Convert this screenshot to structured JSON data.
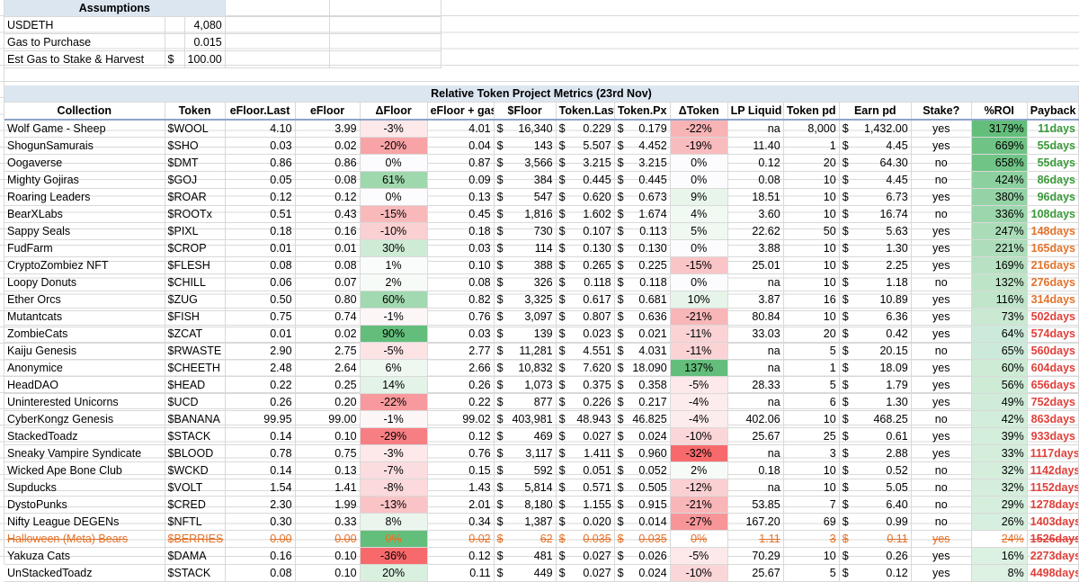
{
  "assumptions": {
    "title": "Assumptions",
    "rows": [
      {
        "label": "USDETH",
        "cur": "",
        "value": "4,080"
      },
      {
        "label": "Gas to Purchase",
        "cur": "",
        "value": "0.015"
      },
      {
        "label": "Est Gas to Stake & Harvest",
        "cur": "$",
        "value": "100.00"
      }
    ]
  },
  "table": {
    "title": "Relative Token Project Metrics (23rd Nov)",
    "headers": [
      "Collection",
      "Token",
      "eFloor.Last",
      "eFloor",
      "ΔFloor",
      "eFloor + gas",
      "$Floor",
      "Token.Last",
      "Token.Px",
      "ΔToken",
      "LP Liquid",
      "Token pd",
      "Earn pd",
      "Stake?",
      "%ROI",
      "Payback"
    ],
    "rows": [
      {
        "collection": "Wolf Game - Sheep",
        "token": "$WOOL",
        "efloor_last": "4.10",
        "efloor": "3.99",
        "dfloor": "-3%",
        "efloor_gas": "4.01",
        "usd_floor": "16,340",
        "token_last": "0.229",
        "token_px": "0.179",
        "dtoken": "-22%",
        "lp": "na",
        "token_pd": "8,000",
        "earn_pd": "1,432.00",
        "stake": "yes",
        "roi": "3179%",
        "payback": "11days",
        "dfloor_bg": "#fde9ea",
        "dtoken_bg": "#f8b3b5",
        "roi_bg": "#63be7b",
        "payback_color": "#3a9a3a",
        "strike": false
      },
      {
        "collection": "ShogunSamurais",
        "token": "$SHO",
        "efloor_last": "0.03",
        "efloor": "0.02",
        "dfloor": "-20%",
        "efloor_gas": "0.04",
        "usd_floor": "143",
        "token_last": "5.507",
        "token_px": "4.452",
        "dtoken": "-19%",
        "lp": "11.40",
        "token_pd": "1",
        "earn_pd": "4.45",
        "stake": "yes",
        "roi": "669%",
        "payback": "55days",
        "dfloor_bg": "#f8a3a6",
        "dtoken_bg": "#f9bcbe",
        "roi_bg": "#6fc385",
        "payback_color": "#3a9a3a",
        "strike": false
      },
      {
        "collection": "Oogaverse",
        "token": "$DMT",
        "efloor_last": "0.86",
        "efloor": "0.86",
        "dfloor": "0%",
        "efloor_gas": "0.87",
        "usd_floor": "3,566",
        "token_last": "3.215",
        "token_px": "3.215",
        "dtoken": "0%",
        "lp": "0.12",
        "token_pd": "20",
        "earn_pd": "64.30",
        "stake": "no",
        "roi": "658%",
        "payback": "55days",
        "dfloor_bg": "#fcfcff",
        "dtoken_bg": "#fcfcff",
        "roi_bg": "#70c486",
        "payback_color": "#3a9a3a",
        "strike": false
      },
      {
        "collection": "Mighty Gojiras",
        "token": "$GOJ",
        "efloor_last": "0.05",
        "efloor": "0.08",
        "dfloor": "61%",
        "efloor_gas": "0.09",
        "usd_floor": "384",
        "token_last": "0.445",
        "token_px": "0.445",
        "dtoken": "0%",
        "lp": "0.08",
        "token_pd": "10",
        "earn_pd": "4.45",
        "stake": "no",
        "roi": "424%",
        "payback": "86days",
        "dfloor_bg": "#a0d8ae",
        "dtoken_bg": "#fcfcff",
        "roi_bg": "#8dd09f",
        "payback_color": "#3a9a3a",
        "strike": false
      },
      {
        "collection": "Roaring Leaders",
        "token": "$ROAR",
        "efloor_last": "0.12",
        "efloor": "0.12",
        "dfloor": "0%",
        "efloor_gas": "0.13",
        "usd_floor": "547",
        "token_last": "0.620",
        "token_px": "0.673",
        "dtoken": "9%",
        "lp": "18.51",
        "token_pd": "10",
        "earn_pd": "6.73",
        "stake": "yes",
        "roi": "380%",
        "payback": "96days",
        "dfloor_bg": "#fcfcff",
        "dtoken_bg": "#e8f5eb",
        "roi_bg": "#95d3a6",
        "payback_color": "#3a9a3a",
        "strike": false
      },
      {
        "collection": "BearXLabs",
        "token": "$ROOTx",
        "efloor_last": "0.51",
        "efloor": "0.43",
        "dfloor": "-15%",
        "efloor_gas": "0.45",
        "usd_floor": "1,816",
        "token_last": "1.602",
        "token_px": "1.674",
        "dtoken": "4%",
        "lp": "3.60",
        "token_pd": "10",
        "earn_pd": "16.74",
        "stake": "no",
        "roi": "336%",
        "payback": "108days",
        "dfloor_bg": "#f9b9bb",
        "dtoken_bg": "#f1f9f3",
        "roi_bg": "#9cd6ac",
        "payback_color": "#3a9a3a",
        "strike": false
      },
      {
        "collection": "Sappy Seals",
        "token": "$PIXL",
        "efloor_last": "0.18",
        "efloor": "0.16",
        "dfloor": "-10%",
        "efloor_gas": "0.18",
        "usd_floor": "730",
        "token_last": "0.107",
        "token_px": "0.113",
        "dtoken": "5%",
        "lp": "22.62",
        "token_pd": "50",
        "earn_pd": "5.63",
        "stake": "yes",
        "roi": "247%",
        "payback": "148days",
        "dfloor_bg": "#fbd0d2",
        "dtoken_bg": "#eff8f1",
        "roi_bg": "#aadcb7",
        "payback_color": "#e3722a",
        "strike": false
      },
      {
        "collection": "FudFarm",
        "token": "$CROP",
        "efloor_last": "0.01",
        "efloor": "0.01",
        "dfloor": "30%",
        "efloor_gas": "0.03",
        "usd_floor": "114",
        "token_last": "0.130",
        "token_px": "0.130",
        "dtoken": "0%",
        "lp": "3.88",
        "token_pd": "10",
        "earn_pd": "1.30",
        "stake": "yes",
        "roi": "221%",
        "payback": "165days",
        "dfloor_bg": "#cdebd5",
        "dtoken_bg": "#fcfcff",
        "roi_bg": "#aeddbb",
        "payback_color": "#e3722a",
        "strike": false
      },
      {
        "collection": "CryptoZombiez NFT",
        "token": "$FLESH",
        "efloor_last": "0.08",
        "efloor": "0.08",
        "dfloor": "1%",
        "efloor_gas": "0.10",
        "usd_floor": "388",
        "token_last": "0.265",
        "token_px": "0.225",
        "dtoken": "-15%",
        "lp": "25.01",
        "token_pd": "10",
        "earn_pd": "2.25",
        "stake": "yes",
        "roi": "169%",
        "payback": "216days",
        "dfloor_bg": "#f9fcfb",
        "dtoken_bg": "#fac5c7",
        "roi_bg": "#b7e1c2",
        "payback_color": "#e3722a",
        "strike": false
      },
      {
        "collection": "Loopy Donuts",
        "token": "$CHILL",
        "efloor_last": "0.06",
        "efloor": "0.07",
        "dfloor": "2%",
        "efloor_gas": "0.08",
        "usd_floor": "326",
        "token_last": "0.118",
        "token_px": "0.118",
        "dtoken": "0%",
        "lp": "na",
        "token_pd": "10",
        "earn_pd": "1.18",
        "stake": "no",
        "roi": "132%",
        "payback": "276days",
        "dfloor_bg": "#f7fbf8",
        "dtoken_bg": "#fcfcff",
        "roi_bg": "#bee4c8",
        "payback_color": "#e3722a",
        "strike": false
      },
      {
        "collection": "Ether Orcs",
        "token": "$ZUG",
        "efloor_last": "0.50",
        "efloor": "0.80",
        "dfloor": "60%",
        "efloor_gas": "0.82",
        "usd_floor": "3,325",
        "token_last": "0.617",
        "token_px": "0.681",
        "dtoken": "10%",
        "lp": "3.87",
        "token_pd": "16",
        "earn_pd": "10.89",
        "stake": "yes",
        "roi": "116%",
        "payback": "314days",
        "dfloor_bg": "#a2d9b0",
        "dtoken_bg": "#e6f4ea",
        "roi_bg": "#c1e5cb",
        "payback_color": "#e3722a",
        "strike": false
      },
      {
        "collection": "Mutantcats",
        "token": "$FISH",
        "efloor_last": "0.75",
        "efloor": "0.74",
        "dfloor": "-1%",
        "efloor_gas": "0.76",
        "usd_floor": "3,097",
        "token_last": "0.807",
        "token_px": "0.636",
        "dtoken": "-21%",
        "lp": "80.84",
        "token_pd": "10",
        "earn_pd": "6.36",
        "stake": "yes",
        "roi": "73%",
        "payback": "502days",
        "dfloor_bg": "#fdf6f7",
        "dtoken_bg": "#f8b6b8",
        "roi_bg": "#cae9d2",
        "payback_color": "#e0403a",
        "strike": false
      },
      {
        "collection": "ZombieCats",
        "token": "$ZCAT",
        "efloor_last": "0.01",
        "efloor": "0.02",
        "dfloor": "90%",
        "efloor_gas": "0.03",
        "usd_floor": "139",
        "token_last": "0.023",
        "token_px": "0.021",
        "dtoken": "-11%",
        "lp": "33.03",
        "token_pd": "20",
        "earn_pd": "0.42",
        "stake": "yes",
        "roi": "64%",
        "payback": "574days",
        "dfloor_bg": "#63be7b",
        "dtoken_bg": "#fbd3d5",
        "roi_bg": "#cceadb",
        "payback_color": "#e0403a",
        "strike": false
      },
      {
        "collection": "Kaiju Genesis",
        "token": "$RWASTE",
        "efloor_last": "2.90",
        "efloor": "2.75",
        "dfloor": "-5%",
        "efloor_gas": "2.77",
        "usd_floor": "11,281",
        "token_last": "4.551",
        "token_px": "4.031",
        "dtoken": "-11%",
        "lp": "na",
        "token_pd": "5",
        "earn_pd": "20.15",
        "stake": "no",
        "roi": "65%",
        "payback": "560days",
        "dfloor_bg": "#fce4e5",
        "dtoken_bg": "#fbd3d5",
        "roi_bg": "#cceada",
        "payback_color": "#e0403a",
        "strike": false
      },
      {
        "collection": "Anonymice",
        "token": "$CHEETH",
        "efloor_last": "2.48",
        "efloor": "2.64",
        "dfloor": "6%",
        "efloor_gas": "2.66",
        "usd_floor": "10,832",
        "token_last": "7.620",
        "token_px": "18.090",
        "dtoken": "137%",
        "lp": "na",
        "token_pd": "1",
        "earn_pd": "18.09",
        "stake": "yes",
        "roi": "60%",
        "payback": "604days",
        "dfloor_bg": "#eef8f1",
        "dtoken_bg": "#63be7b",
        "roi_bg": "#cdebd5",
        "payback_color": "#e0403a",
        "strike": false
      },
      {
        "collection": "HeadDAO",
        "token": "$HEAD",
        "efloor_last": "0.22",
        "efloor": "0.25",
        "dfloor": "14%",
        "efloor_gas": "0.26",
        "usd_floor": "1,073",
        "token_last": "0.375",
        "token_px": "0.358",
        "dtoken": "-5%",
        "lp": "28.33",
        "token_pd": "5",
        "earn_pd": "1.79",
        "stake": "yes",
        "roi": "56%",
        "payback": "656days",
        "dfloor_bg": "#e3f3e7",
        "dtoken_bg": "#fde9ea",
        "roi_bg": "#ceebd6",
        "payback_color": "#e0403a",
        "strike": false
      },
      {
        "collection": "Uninterested Unicorns",
        "token": "$UCD",
        "efloor_last": "0.26",
        "efloor": "0.20",
        "dfloor": "-22%",
        "efloor_gas": "0.22",
        "usd_floor": "877",
        "token_last": "0.226",
        "token_px": "0.217",
        "dtoken": "-4%",
        "lp": "na",
        "token_pd": "6",
        "earn_pd": "1.30",
        "stake": "yes",
        "roi": "49%",
        "payback": "752days",
        "dfloor_bg": "#f89a9d",
        "dtoken_bg": "#fdeced",
        "roi_bg": "#d0ecd8",
        "payback_color": "#e0403a",
        "strike": false
      },
      {
        "collection": "CyberKongz Genesis",
        "token": "$BANANA",
        "efloor_last": "99.95",
        "efloor": "99.00",
        "dfloor": "-1%",
        "efloor_gas": "99.02",
        "usd_floor": "403,981",
        "token_last": "48.943",
        "token_px": "46.825",
        "dtoken": "-4%",
        "lp": "402.06",
        "token_pd": "10",
        "earn_pd": "468.25",
        "stake": "no",
        "roi": "42%",
        "payback": "863days",
        "dfloor_bg": "#fdf6f7",
        "dtoken_bg": "#fdeced",
        "roi_bg": "#d2edd9",
        "payback_color": "#e0403a",
        "strike": false
      },
      {
        "collection": "StackedToadz",
        "token": "$STACK",
        "efloor_last": "0.14",
        "efloor": "0.10",
        "dfloor": "-29%",
        "efloor_gas": "0.12",
        "usd_floor": "469",
        "token_last": "0.027",
        "token_px": "0.024",
        "dtoken": "-10%",
        "lp": "25.67",
        "token_pd": "25",
        "earn_pd": "0.61",
        "stake": "yes",
        "roi": "39%",
        "payback": "933days",
        "dfloor_bg": "#f77f83",
        "dtoken_bg": "#fbd6d8",
        "roi_bg": "#d3eeda",
        "payback_color": "#e0403a",
        "strike": false
      },
      {
        "collection": "Sneaky Vampire Syndicate",
        "token": "$BLOOD",
        "efloor_last": "0.78",
        "efloor": "0.75",
        "dfloor": "-3%",
        "efloor_gas": "0.76",
        "usd_floor": "3,117",
        "token_last": "1.411",
        "token_px": "0.960",
        "dtoken": "-32%",
        "lp": "na",
        "token_pd": "3",
        "earn_pd": "2.88",
        "stake": "yes",
        "roi": "33%",
        "payback": "1117days",
        "dfloor_bg": "#fde9ea",
        "dtoken_bg": "#f8696b",
        "roi_bg": "#d5eedc",
        "payback_color": "#e0403a",
        "strike": false
      },
      {
        "collection": "Wicked Ape Bone Club",
        "token": "$WCKD",
        "efloor_last": "0.14",
        "efloor": "0.13",
        "dfloor": "-7%",
        "efloor_gas": "0.15",
        "usd_floor": "592",
        "token_last": "0.051",
        "token_px": "0.052",
        "dtoken": "2%",
        "lp": "0.18",
        "token_pd": "10",
        "earn_pd": "0.52",
        "stake": "no",
        "roi": "32%",
        "payback": "1142days",
        "dfloor_bg": "#fcdddf",
        "dtoken_bg": "#f6fbf7",
        "roi_bg": "#d5eedc",
        "payback_color": "#e0403a",
        "strike": false
      },
      {
        "collection": "Supducks",
        "token": "$VOLT",
        "efloor_last": "1.54",
        "efloor": "1.41",
        "dfloor": "-8%",
        "efloor_gas": "1.43",
        "usd_floor": "5,814",
        "token_last": "0.571",
        "token_px": "0.505",
        "dtoken": "-12%",
        "lp": "na",
        "token_pd": "10",
        "earn_pd": "5.05",
        "stake": "no",
        "roi": "32%",
        "payback": "1152days",
        "dfloor_bg": "#fcd9db",
        "dtoken_bg": "#fbd0d2",
        "roi_bg": "#d5eedc",
        "payback_color": "#e0403a",
        "strike": false
      },
      {
        "collection": "DystoPunks",
        "token": "$CRED",
        "efloor_last": "2.30",
        "efloor": "1.99",
        "dfloor": "-13%",
        "efloor_gas": "2.01",
        "usd_floor": "8,180",
        "token_last": "1.155",
        "token_px": "0.915",
        "dtoken": "-21%",
        "lp": "53.85",
        "token_pd": "7",
        "earn_pd": "6.40",
        "stake": "no",
        "roi": "29%",
        "payback": "1278days",
        "dfloor_bg": "#fac3c5",
        "dtoken_bg": "#f8b6b8",
        "roi_bg": "#d6efdd",
        "payback_color": "#e0403a",
        "strike": false
      },
      {
        "collection": "Nifty League DEGENs",
        "token": "$NFTL",
        "efloor_last": "0.30",
        "efloor": "0.33",
        "dfloor": "8%",
        "efloor_gas": "0.34",
        "usd_floor": "1,387",
        "token_last": "0.020",
        "token_px": "0.014",
        "dtoken": "-27%",
        "lp": "167.20",
        "token_pd": "69",
        "earn_pd": "0.99",
        "stake": "no",
        "roi": "26%",
        "payback": "1403days",
        "dfloor_bg": "#eaf6ed",
        "dtoken_bg": "#f79599",
        "roi_bg": "#d7efde",
        "payback_color": "#e0403a",
        "strike": false
      },
      {
        "collection": "Halloween (Meta) Bears",
        "token": "$BERRIES",
        "efloor_last": "0.00",
        "efloor": "0.00",
        "dfloor": "0%",
        "efloor_gas": "0.02",
        "usd_floor": "62",
        "token_last": "0.035",
        "token_px": "0.035",
        "dtoken": "0%",
        "lp": "1.11",
        "token_pd": "3",
        "earn_pd": "0.11",
        "stake": "yes",
        "roi": "24%",
        "payback": "1526days",
        "dfloor_bg": "#63be7b",
        "dtoken_bg": "#ffffff",
        "roi_bg": "#ffffff",
        "payback_color": "#e0403a",
        "strike": true
      },
      {
        "collection": "Yakuza Cats",
        "token": "$DAMA",
        "efloor_last": "0.16",
        "efloor": "0.10",
        "dfloor": "-36%",
        "efloor_gas": "0.12",
        "usd_floor": "481",
        "token_last": "0.027",
        "token_px": "0.026",
        "dtoken": "-5%",
        "lp": "70.29",
        "token_pd": "10",
        "earn_pd": "0.26",
        "stake": "yes",
        "roi": "16%",
        "payback": "2273days",
        "dfloor_bg": "#f8696b",
        "dtoken_bg": "#fde9ea",
        "roi_bg": "#dbf1e1",
        "payback_color": "#e0403a",
        "strike": false
      },
      {
        "collection": "UnStackedToadz",
        "token": "$STACK",
        "efloor_last": "0.08",
        "efloor": "0.10",
        "dfloor": "20%",
        "efloor_gas": "0.11",
        "usd_floor": "449",
        "token_last": "0.027",
        "token_px": "0.024",
        "dtoken": "-10%",
        "lp": "25.67",
        "token_pd": "5",
        "earn_pd": "0.12",
        "stake": "yes",
        "roi": "8%",
        "payback": "4498days",
        "dfloor_bg": "#d9f0df",
        "dtoken_bg": "#fbd6d8",
        "roi_bg": "#def2e3",
        "payback_color": "#e0403a",
        "strike": false
      }
    ]
  }
}
